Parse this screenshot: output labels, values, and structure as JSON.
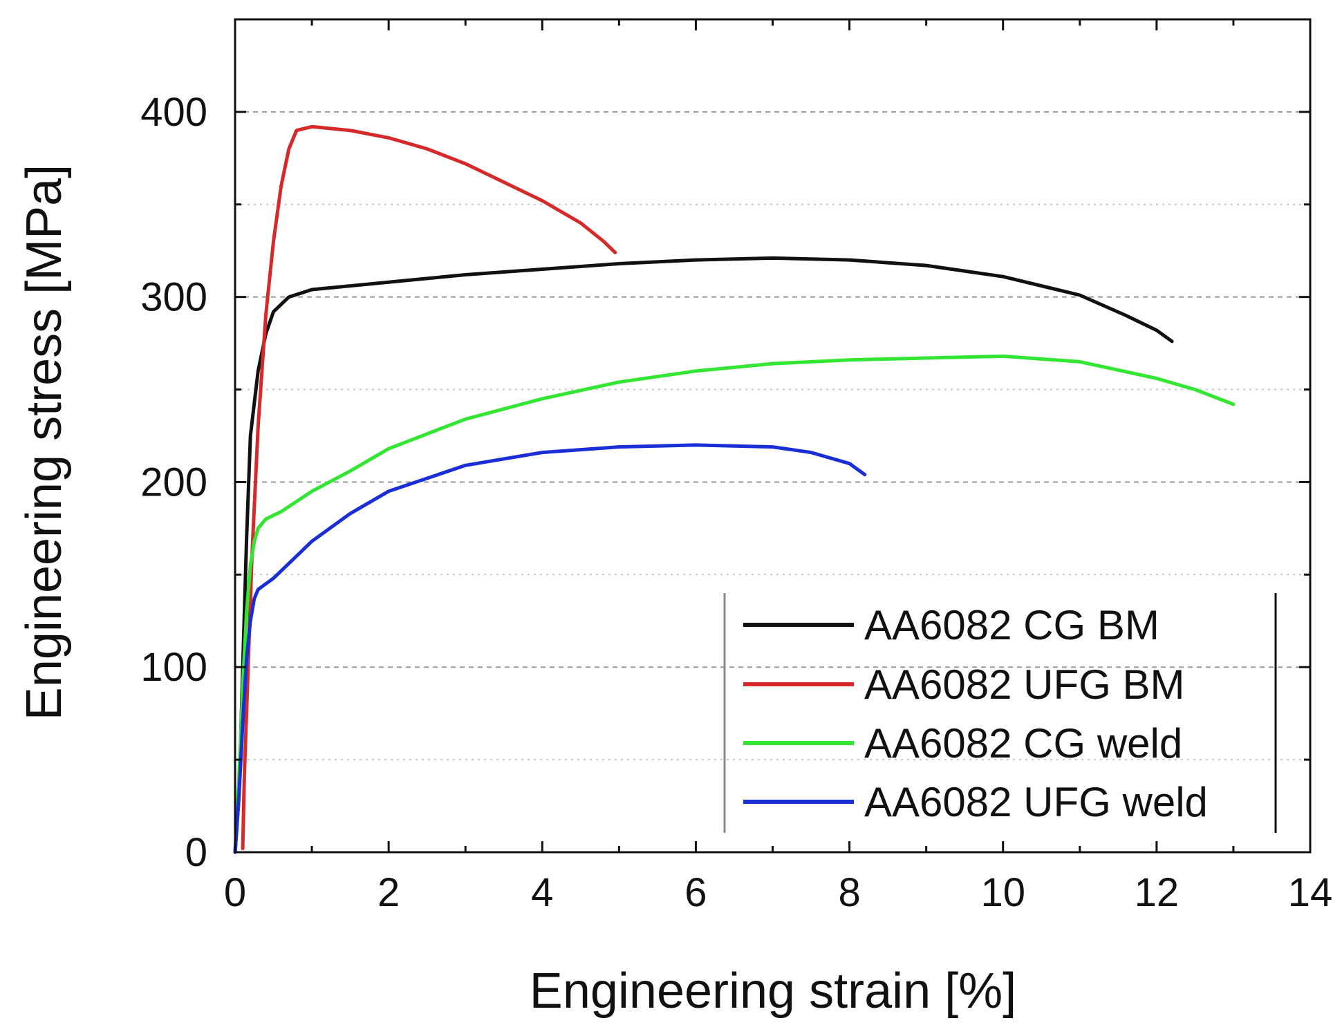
{
  "chart_data": {
    "type": "line",
    "title": "",
    "xlabel": "Engineering strain [%]",
    "ylabel": "Engineering stress [MPa]",
    "xlim": [
      0,
      14
    ],
    "ylim": [
      0,
      450
    ],
    "x_major_ticks": [
      0,
      2,
      4,
      6,
      8,
      10,
      12,
      14
    ],
    "x_minor_ticks": [
      1,
      3,
      5,
      7,
      9,
      11,
      13
    ],
    "y_major_ticks": [
      0,
      100,
      200,
      300,
      400
    ],
    "y_minor_ticks": [
      50,
      150,
      250,
      350
    ],
    "x_tick_labels": [
      "0",
      "2",
      "4",
      "6",
      "8",
      "10",
      "12",
      "14"
    ],
    "y_tick_labels": [
      "0",
      "100",
      "200",
      "300",
      "400"
    ],
    "grid": "horizontal dashed",
    "legend_position": "bottom-right",
    "series": [
      {
        "name": "AA6082 CG BM",
        "color": "#111111",
        "points": [
          [
            0.0,
            0
          ],
          [
            0.05,
            30
          ],
          [
            0.1,
            100
          ],
          [
            0.15,
            170
          ],
          [
            0.2,
            225
          ],
          [
            0.3,
            260
          ],
          [
            0.4,
            280
          ],
          [
            0.5,
            292
          ],
          [
            0.7,
            300
          ],
          [
            1.0,
            304
          ],
          [
            1.5,
            306
          ],
          [
            2.0,
            308
          ],
          [
            3.0,
            312
          ],
          [
            4.0,
            315
          ],
          [
            5.0,
            318
          ],
          [
            6.0,
            320
          ],
          [
            7.0,
            321
          ],
          [
            8.0,
            320
          ],
          [
            9.0,
            317
          ],
          [
            10.0,
            311
          ],
          [
            11.0,
            301
          ],
          [
            11.6,
            290
          ],
          [
            12.0,
            282
          ],
          [
            12.2,
            276
          ]
        ]
      },
      {
        "name": "AA6082 UFG BM",
        "color": "#d62a2a",
        "points": [
          [
            0.1,
            2
          ],
          [
            0.12,
            40
          ],
          [
            0.17,
            100
          ],
          [
            0.22,
            160
          ],
          [
            0.3,
            230
          ],
          [
            0.4,
            290
          ],
          [
            0.5,
            330
          ],
          [
            0.6,
            360
          ],
          [
            0.7,
            380
          ],
          [
            0.8,
            390
          ],
          [
            1.0,
            392
          ],
          [
            1.5,
            390
          ],
          [
            2.0,
            386
          ],
          [
            2.5,
            380
          ],
          [
            3.0,
            372
          ],
          [
            3.5,
            362
          ],
          [
            4.0,
            352
          ],
          [
            4.5,
            340
          ],
          [
            4.8,
            330
          ],
          [
            4.95,
            324
          ]
        ]
      },
      {
        "name": "AA6082 CG weld",
        "color": "#33e633",
        "points": [
          [
            0.0,
            0
          ],
          [
            0.05,
            40
          ],
          [
            0.1,
            90
          ],
          [
            0.15,
            130
          ],
          [
            0.2,
            155
          ],
          [
            0.25,
            168
          ],
          [
            0.3,
            175
          ],
          [
            0.4,
            180
          ],
          [
            0.6,
            184
          ],
          [
            1.0,
            195
          ],
          [
            1.5,
            206
          ],
          [
            2.0,
            218
          ],
          [
            3.0,
            234
          ],
          [
            4.0,
            245
          ],
          [
            5.0,
            254
          ],
          [
            6.0,
            260
          ],
          [
            7.0,
            264
          ],
          [
            8.0,
            266
          ],
          [
            9.0,
            267
          ],
          [
            10.0,
            268
          ],
          [
            11.0,
            265
          ],
          [
            12.0,
            256
          ],
          [
            12.5,
            250
          ],
          [
            13.0,
            242
          ]
        ]
      },
      {
        "name": "AA6082 UFG weld",
        "color": "#1a2ed6",
        "points": [
          [
            0.0,
            0
          ],
          [
            0.05,
            30
          ],
          [
            0.1,
            70
          ],
          [
            0.15,
            105
          ],
          [
            0.2,
            125
          ],
          [
            0.25,
            137
          ],
          [
            0.3,
            142
          ],
          [
            0.5,
            148
          ],
          [
            0.8,
            160
          ],
          [
            1.0,
            168
          ],
          [
            1.5,
            183
          ],
          [
            2.0,
            195
          ],
          [
            3.0,
            209
          ],
          [
            4.0,
            216
          ],
          [
            5.0,
            219
          ],
          [
            6.0,
            220
          ],
          [
            7.0,
            219
          ],
          [
            7.5,
            216
          ],
          [
            8.0,
            210
          ],
          [
            8.2,
            204
          ]
        ]
      }
    ]
  }
}
